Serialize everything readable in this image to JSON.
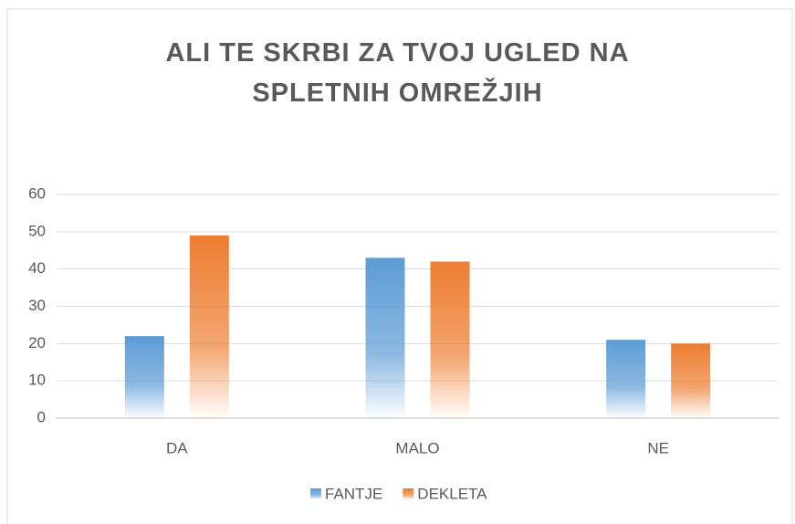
{
  "chart_data": {
    "type": "bar",
    "title": "ALI TE SKRBI ZA TVOJ UGLED NA SPLETNIH OMREŽJIH",
    "categories": [
      "DA",
      "MALO",
      "NE"
    ],
    "series": [
      {
        "name": "FANTJE",
        "color": "#5b9bd5",
        "values": [
          22,
          43,
          21
        ]
      },
      {
        "name": "DEKLETA",
        "color": "#ed7d31",
        "values": [
          49,
          42,
          20
        ]
      }
    ],
    "ylim": [
      0,
      60
    ],
    "yticks": [
      0,
      10,
      20,
      30,
      40,
      50,
      60
    ],
    "grid": true,
    "legend": "bottom"
  }
}
